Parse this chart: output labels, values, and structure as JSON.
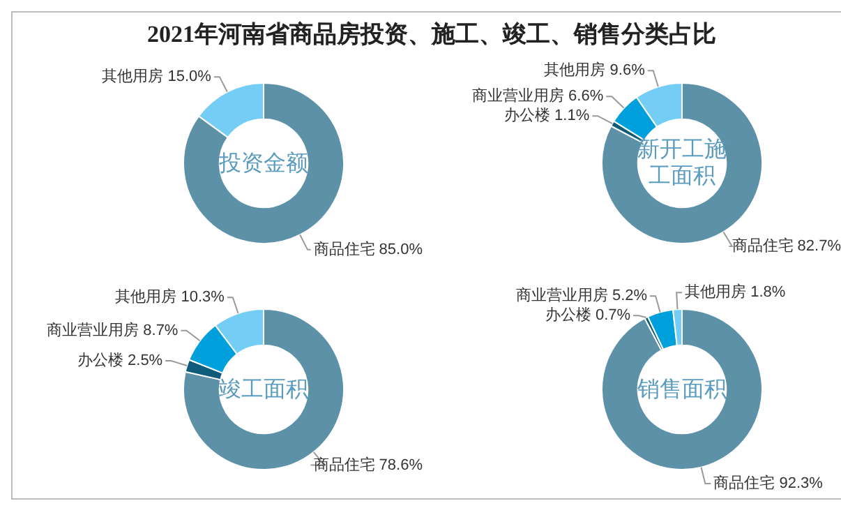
{
  "chart_data": [
    {
      "type": "other",
      "title": "2021年河南省商品房投资、施工、竣工、销售分类占比"
    },
    {
      "type": "donut",
      "title": "投资金额",
      "categories": [
        "商品住宅",
        "其他用房"
      ],
      "values": [
        85.0,
        15.0
      ],
      "value_labels": [
        "85.0%",
        "15.0%"
      ],
      "colors": [
        "#5d91a7",
        "#73cdf4"
      ]
    },
    {
      "type": "donut",
      "title": "新开工施工面积",
      "categories": [
        "商品住宅",
        "办公楼",
        "商业营业用房",
        "其他用房"
      ],
      "values": [
        82.7,
        1.1,
        6.6,
        9.6
      ],
      "value_labels": [
        "82.7%",
        "1.1%",
        "6.6%",
        "9.6%"
      ],
      "colors": [
        "#5d91a7",
        "#0e5c7a",
        "#00a0dc",
        "#73cdf4"
      ]
    },
    {
      "type": "donut",
      "title": "竣工面积",
      "categories": [
        "商品住宅",
        "办公楼",
        "商业营业用房",
        "其他用房"
      ],
      "values": [
        78.6,
        2.5,
        8.7,
        10.3
      ],
      "value_labels": [
        "78.6%",
        "2.5%",
        "8.7%",
        "10.3%"
      ],
      "colors": [
        "#5d91a7",
        "#0e5c7a",
        "#00a0dc",
        "#73cdf4"
      ]
    },
    {
      "type": "donut",
      "title": "销售面积",
      "categories": [
        "商品住宅",
        "办公楼",
        "商业营业用房",
        "其他用房"
      ],
      "values": [
        92.3,
        0.7,
        5.2,
        1.8
      ],
      "value_labels": [
        "92.3%",
        "0.7%",
        "5.2%",
        "1.8%"
      ],
      "colors": [
        "#5d91a7",
        "#0e5c7a",
        "#00a0dc",
        "#73cdf4"
      ]
    }
  ]
}
